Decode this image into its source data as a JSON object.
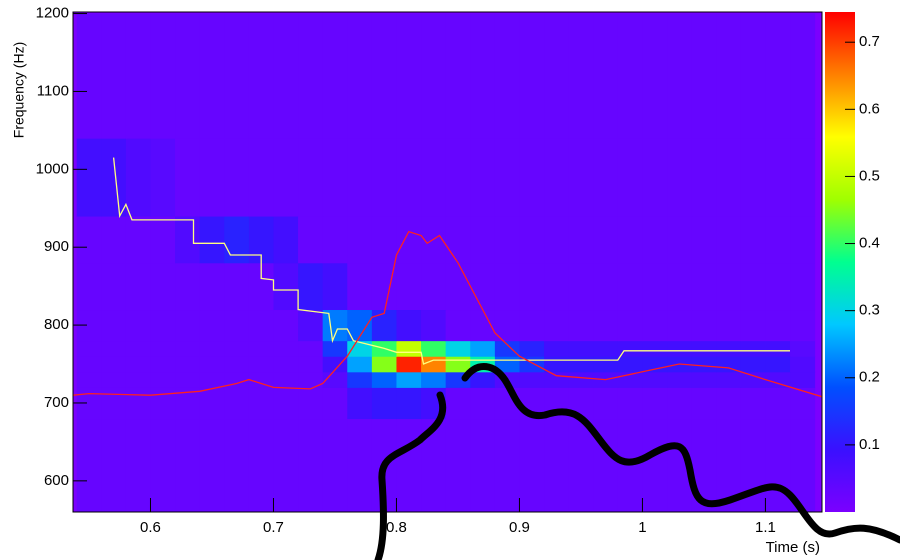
{
  "chart_data": {
    "type": "heatmap",
    "x_label": "Time (s)",
    "y_label": "Frequency (Hz)",
    "xlim": [
      0.537,
      1.146
    ],
    "ylim": [
      560,
      1202
    ],
    "xticks": [
      0.6,
      0.7,
      0.8,
      0.9,
      1,
      1.1
    ],
    "yticks": [
      600,
      700,
      800,
      900,
      1000,
      1100,
      1200
    ],
    "zlim": [
      0,
      0.745
    ],
    "zticks": [
      0.1,
      0.2,
      0.3,
      0.4,
      0.5,
      0.6,
      0.7
    ],
    "colorscale": [
      "#7b00ff",
      "#3a10ff",
      "#0050ff",
      "#00c8ff",
      "#00ff90",
      "#a0ff00",
      "#ffff00",
      "#ff8000",
      "#ff0000"
    ],
    "xedges": [
      0.54,
      0.56,
      0.58,
      0.6,
      0.62,
      0.64,
      0.66,
      0.68,
      0.7,
      0.72,
      0.74,
      0.76,
      0.78,
      0.8,
      0.82,
      0.84,
      0.86,
      0.88,
      0.9,
      0.92,
      0.94,
      0.96,
      0.98,
      1.0,
      1.02,
      1.04,
      1.06,
      1.08,
      1.1,
      1.12,
      1.14
    ],
    "yedges": [
      560,
      680,
      720,
      740,
      760,
      780,
      820,
      880,
      940,
      1040,
      1200
    ],
    "z": [
      [
        0.03,
        0.03,
        0.03,
        0.03,
        0.03,
        0.03,
        0.03,
        0.03,
        0.03,
        0.03,
        0.03,
        0.03,
        0.03,
        0.03,
        0.03,
        0.03,
        0.03,
        0.03,
        0.03,
        0.03,
        0.03,
        0.03,
        0.03,
        0.03,
        0.03,
        0.03,
        0.03,
        0.03,
        0.03,
        0.03
      ],
      [
        0.03,
        0.03,
        0.03,
        0.03,
        0.03,
        0.03,
        0.03,
        0.03,
        0.03,
        0.03,
        0.03,
        0.08,
        0.1,
        0.1,
        0.08,
        0.03,
        0.03,
        0.03,
        0.03,
        0.03,
        0.03,
        0.03,
        0.03,
        0.03,
        0.03,
        0.03,
        0.03,
        0.03,
        0.03,
        0.03
      ],
      [
        0.03,
        0.03,
        0.03,
        0.03,
        0.03,
        0.03,
        0.03,
        0.03,
        0.03,
        0.03,
        0.05,
        0.15,
        0.2,
        0.25,
        0.22,
        0.15,
        0.1,
        0.06,
        0.06,
        0.06,
        0.06,
        0.06,
        0.06,
        0.06,
        0.06,
        0.06,
        0.06,
        0.06,
        0.06,
        0.06
      ],
      [
        0.03,
        0.03,
        0.03,
        0.03,
        0.03,
        0.03,
        0.03,
        0.03,
        0.03,
        0.03,
        0.08,
        0.25,
        0.45,
        0.72,
        0.65,
        0.45,
        0.35,
        0.2,
        0.15,
        0.1,
        0.1,
        0.1,
        0.1,
        0.1,
        0.1,
        0.1,
        0.1,
        0.1,
        0.1,
        0.06
      ],
      [
        0.03,
        0.03,
        0.03,
        0.03,
        0.03,
        0.03,
        0.03,
        0.03,
        0.03,
        0.03,
        0.15,
        0.3,
        0.4,
        0.5,
        0.4,
        0.3,
        0.25,
        0.15,
        0.12,
        0.08,
        0.08,
        0.08,
        0.08,
        0.08,
        0.08,
        0.08,
        0.08,
        0.08,
        0.08,
        0.05
      ],
      [
        0.03,
        0.03,
        0.03,
        0.03,
        0.03,
        0.03,
        0.03,
        0.03,
        0.03,
        0.06,
        0.22,
        0.2,
        0.12,
        0.08,
        0.06,
        0.03,
        0.03,
        0.03,
        0.03,
        0.03,
        0.03,
        0.03,
        0.03,
        0.03,
        0.03,
        0.03,
        0.03,
        0.03,
        0.03,
        0.03
      ],
      [
        0.03,
        0.03,
        0.03,
        0.03,
        0.03,
        0.03,
        0.03,
        0.03,
        0.06,
        0.1,
        0.08,
        0.03,
        0.03,
        0.03,
        0.03,
        0.03,
        0.03,
        0.03,
        0.03,
        0.03,
        0.03,
        0.03,
        0.03,
        0.03,
        0.03,
        0.03,
        0.03,
        0.03,
        0.03,
        0.03
      ],
      [
        0.03,
        0.03,
        0.03,
        0.03,
        0.06,
        0.1,
        0.12,
        0.1,
        0.08,
        0.03,
        0.03,
        0.03,
        0.03,
        0.03,
        0.03,
        0.03,
        0.03,
        0.03,
        0.03,
        0.03,
        0.03,
        0.03,
        0.03,
        0.03,
        0.03,
        0.03,
        0.03,
        0.03,
        0.03,
        0.03
      ],
      [
        0.08,
        0.08,
        0.06,
        0.05,
        0.03,
        0.03,
        0.03,
        0.03,
        0.03,
        0.03,
        0.03,
        0.03,
        0.03,
        0.03,
        0.03,
        0.03,
        0.03,
        0.03,
        0.03,
        0.03,
        0.03,
        0.03,
        0.03,
        0.03,
        0.03,
        0.03,
        0.03,
        0.03,
        0.03,
        0.03
      ],
      [
        0.03,
        0.03,
        0.03,
        0.03,
        0.03,
        0.03,
        0.03,
        0.03,
        0.03,
        0.03,
        0.03,
        0.03,
        0.03,
        0.03,
        0.03,
        0.03,
        0.03,
        0.03,
        0.03,
        0.03,
        0.03,
        0.03,
        0.03,
        0.03,
        0.03,
        0.03,
        0.03,
        0.03,
        0.03,
        0.03
      ]
    ],
    "lines": [
      {
        "color": "#ffff80",
        "x": [
          0.57,
          0.575,
          0.58,
          0.585,
          0.635,
          0.635,
          0.66,
          0.665,
          0.69,
          0.69,
          0.7,
          0.7,
          0.72,
          0.72,
          0.745,
          0.748,
          0.752,
          0.76,
          0.765,
          0.79,
          0.8,
          0.82,
          0.822,
          0.83,
          0.98,
          0.985,
          1.12
        ],
        "y": [
          1015,
          940,
          955,
          935,
          935,
          905,
          905,
          890,
          890,
          860,
          858,
          845,
          845,
          820,
          815,
          780,
          795,
          795,
          780,
          770,
          765,
          765,
          750,
          755,
          755,
          767,
          767
        ]
      },
      {
        "color": "#ff2020",
        "x": [
          0.537,
          0.55,
          0.6,
          0.64,
          0.67,
          0.68,
          0.7,
          0.73,
          0.74,
          0.76,
          0.78,
          0.79,
          0.8,
          0.81,
          0.82,
          0.825,
          0.835,
          0.85,
          0.87,
          0.88,
          0.9,
          0.93,
          0.97,
          1.0,
          1.03,
          1.07,
          1.1,
          1.146
        ],
        "y": [
          710,
          712,
          710,
          715,
          725,
          730,
          720,
          718,
          725,
          760,
          810,
          815,
          890,
          920,
          915,
          905,
          915,
          880,
          820,
          790,
          760,
          735,
          730,
          740,
          750,
          745,
          730,
          708
        ]
      }
    ]
  }
}
